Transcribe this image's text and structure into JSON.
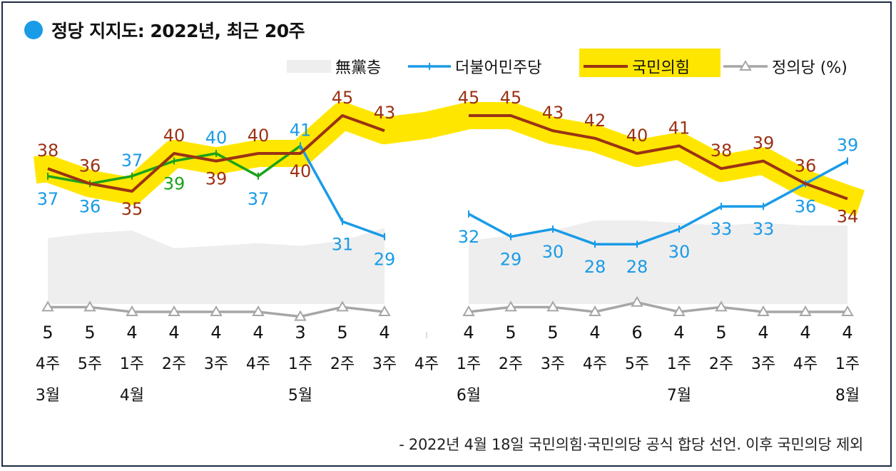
{
  "title": "정당 지지도: 2022년, 최근 20주",
  "footnote": "- 2022년 4월 18일 국민의힘·국민의당 공식 합당 선언. 이후 국민의당 제외",
  "colors": {
    "accent_dot": "#1a9be6",
    "minjoo": "#1a9be6",
    "ppp": "#9b3214",
    "ppp_highlight": "#ffe600",
    "green": "#1aa31a",
    "justice": "#a6a6a6",
    "independent": "#eeeeee"
  },
  "chart_data": {
    "type": "line",
    "legend_position": "top-right",
    "legend": [
      {
        "key": "independent",
        "label": "無黨층"
      },
      {
        "key": "minjoo",
        "label": "더불어민주당"
      },
      {
        "key": "ppp",
        "label": "국민의힘"
      },
      {
        "key": "justice",
        "label": "정의당 (%)"
      }
    ],
    "week_labels": [
      "4주",
      "5주",
      "1주",
      "2주",
      "3주",
      "4주",
      "1주",
      "2주",
      "3주",
      "4주",
      "1주",
      "2주",
      "3주",
      "4주",
      "5주",
      "1주",
      "2주",
      "3주",
      "4주",
      "1주"
    ],
    "month_labels": [
      {
        "index": 0,
        "label": "3월"
      },
      {
        "index": 2,
        "label": "4월"
      },
      {
        "index": 6,
        "label": "5월"
      },
      {
        "index": 10,
        "label": "6월"
      },
      {
        "index": 15,
        "label": "7월"
      },
      {
        "index": 19,
        "label": "8월"
      }
    ],
    "series": [
      {
        "key": "minjoo",
        "name": "더불어민주당",
        "values": [
          37,
          36,
          37,
          39,
          40,
          37,
          41,
          31,
          29,
          null,
          32,
          29,
          30,
          28,
          28,
          30,
          33,
          33,
          36,
          39
        ]
      },
      {
        "key": "ppp",
        "name": "국민의힘",
        "values": [
          38,
          36,
          35,
          40,
          39,
          40,
          40,
          45,
          43,
          null,
          45,
          45,
          43,
          42,
          40,
          41,
          38,
          39,
          36,
          34
        ]
      },
      {
        "key": "justice",
        "name": "정의당 (%)",
        "values": [
          5,
          5,
          4,
          4,
          4,
          4,
          3,
          5,
          4,
          null,
          4,
          5,
          5,
          4,
          6,
          4,
          5,
          4,
          4,
          4
        ]
      }
    ],
    "independent_area": [
      26,
      28,
      29,
      22,
      23,
      24,
      23,
      25,
      30,
      null,
      25,
      27,
      29,
      33,
      33,
      32,
      31,
      32,
      31,
      31
    ],
    "ylim": [
      0,
      50
    ],
    "grid": false
  }
}
